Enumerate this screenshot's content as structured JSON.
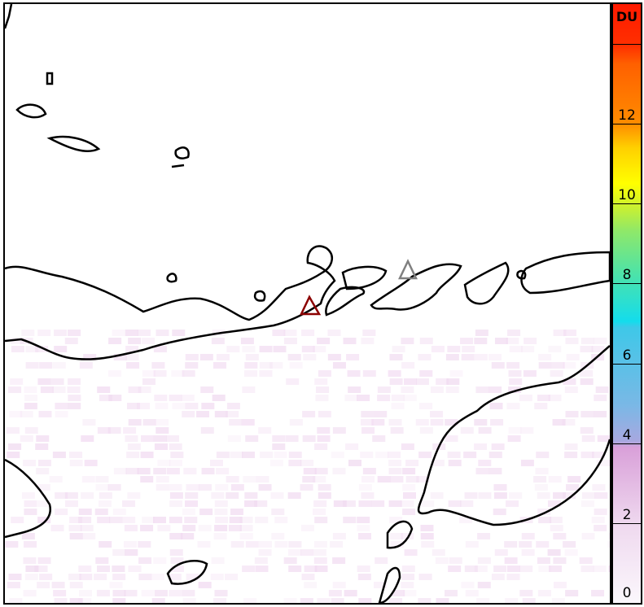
{
  "colorbar": {
    "unit": "DU",
    "range": [
      0,
      15
    ],
    "ticks": [
      "0",
      "2",
      "4",
      "6",
      "8",
      "10",
      "12"
    ],
    "colormap": [
      "#fbf7fc",
      "#d9a0d9",
      "#7ab8e6",
      "#14dcec",
      "#8ee86a",
      "#ffff00",
      "#ff8c00",
      "#ff1a00"
    ]
  },
  "map": {
    "markers": [
      {
        "name": "volcano-primary",
        "color": "#8b0000",
        "shape": "triangle"
      },
      {
        "name": "volcano-secondary",
        "color": "#808080",
        "shape": "triangle"
      }
    ],
    "field_color": "#f0d8f0"
  }
}
